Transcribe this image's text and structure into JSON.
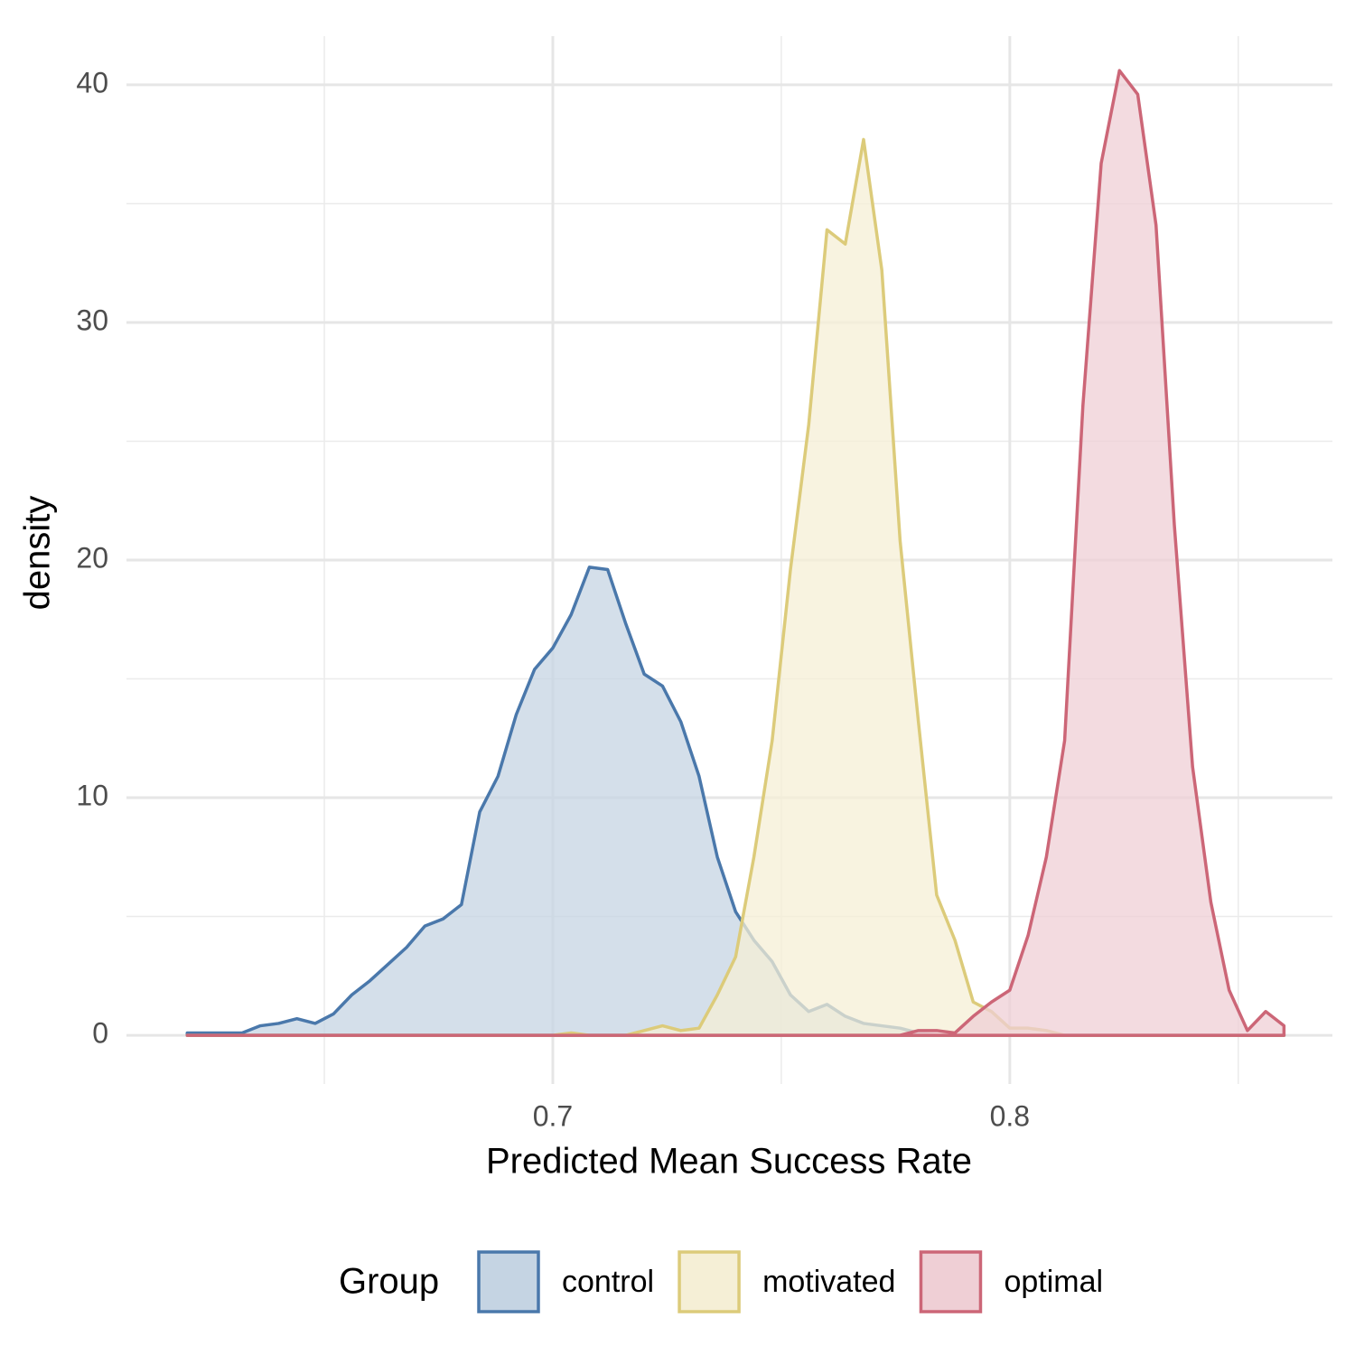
{
  "chart_data": {
    "type": "density",
    "x_label": "Predicted Mean Success Rate",
    "y_label": "density",
    "legend_title": "Group",
    "legend_position": "bottom",
    "grid": true,
    "xlim": [
      0.6067,
      0.8706
    ],
    "ylim": [
      -2.05,
      42.05
    ],
    "xticks": [
      0.7,
      0.8
    ],
    "yticks": [
      0,
      10,
      20,
      30,
      40
    ],
    "x_minor_grid": [
      0.65,
      0.75,
      0.85
    ],
    "y_minor_grid": [
      5,
      15,
      25,
      35
    ],
    "x": [
      0.62,
      0.624,
      0.628,
      0.632,
      0.636,
      0.64,
      0.644,
      0.648,
      0.652,
      0.656,
      0.66,
      0.664,
      0.668,
      0.672,
      0.676,
      0.68,
      0.684,
      0.688,
      0.692,
      0.696,
      0.7,
      0.704,
      0.708,
      0.712,
      0.716,
      0.72,
      0.724,
      0.728,
      0.732,
      0.736,
      0.74,
      0.744,
      0.748,
      0.752,
      0.756,
      0.76,
      0.764,
      0.768,
      0.772,
      0.776,
      0.78,
      0.784,
      0.788,
      0.792,
      0.796,
      0.8,
      0.804,
      0.808,
      0.812,
      0.816,
      0.82,
      0.824,
      0.828,
      0.832,
      0.836,
      0.84,
      0.844,
      0.848,
      0.852,
      0.856,
      0.86
    ],
    "series": [
      {
        "name": "control",
        "color": "#4a78ab",
        "fill": "#c5d4e3",
        "values": [
          0.1,
          0.1,
          0.1,
          0.1,
          0.4,
          0.5,
          0.7,
          0.5,
          0.9,
          1.7,
          2.3,
          3.0,
          3.7,
          4.6,
          4.9,
          5.5,
          9.4,
          10.9,
          13.5,
          15.4,
          16.3,
          17.7,
          19.7,
          19.6,
          17.3,
          15.2,
          14.7,
          13.2,
          10.9,
          7.5,
          5.2,
          4.0,
          3.1,
          1.7,
          1.0,
          1.3,
          0.8,
          0.5,
          0.4,
          0.3,
          0.1,
          0,
          0,
          0,
          0,
          0,
          0,
          0,
          0,
          0,
          0,
          0,
          0,
          0,
          0,
          0,
          0,
          0,
          0,
          0,
          0
        ]
      },
      {
        "name": "motivated",
        "color": "#dccb7a",
        "fill": "#f5efd6",
        "values": [
          0,
          0,
          0,
          0,
          0,
          0,
          0,
          0,
          0,
          0,
          0,
          0,
          0,
          0,
          0,
          0,
          0,
          0,
          0,
          0,
          0,
          0.1,
          0,
          0,
          0,
          0.2,
          0.4,
          0.2,
          0.3,
          1.7,
          3.3,
          7.5,
          12.4,
          19.6,
          25.7,
          33.9,
          33.3,
          37.7,
          32.2,
          20.8,
          13.2,
          5.9,
          4.0,
          1.4,
          1.0,
          0.3,
          0.3,
          0.2,
          0,
          0,
          0,
          0,
          0,
          0,
          0,
          0,
          0,
          0,
          0,
          0,
          0
        ]
      },
      {
        "name": "optimal",
        "color": "#cc6677",
        "fill": "#efcfd5",
        "values": [
          0,
          0,
          0,
          0,
          0,
          0,
          0,
          0,
          0,
          0,
          0,
          0,
          0,
          0,
          0,
          0,
          0,
          0,
          0,
          0,
          0,
          0,
          0,
          0,
          0,
          0,
          0,
          0,
          0,
          0,
          0,
          0,
          0,
          0,
          0,
          0,
          0,
          0,
          0,
          0,
          0.2,
          0.2,
          0.1,
          0.8,
          1.4,
          1.9,
          4.2,
          7.5,
          12.4,
          26.5,
          36.7,
          40.6,
          39.6,
          34.1,
          21.5,
          11.3,
          5.6,
          1.9,
          0.2,
          1.0,
          0.4
        ]
      }
    ]
  }
}
